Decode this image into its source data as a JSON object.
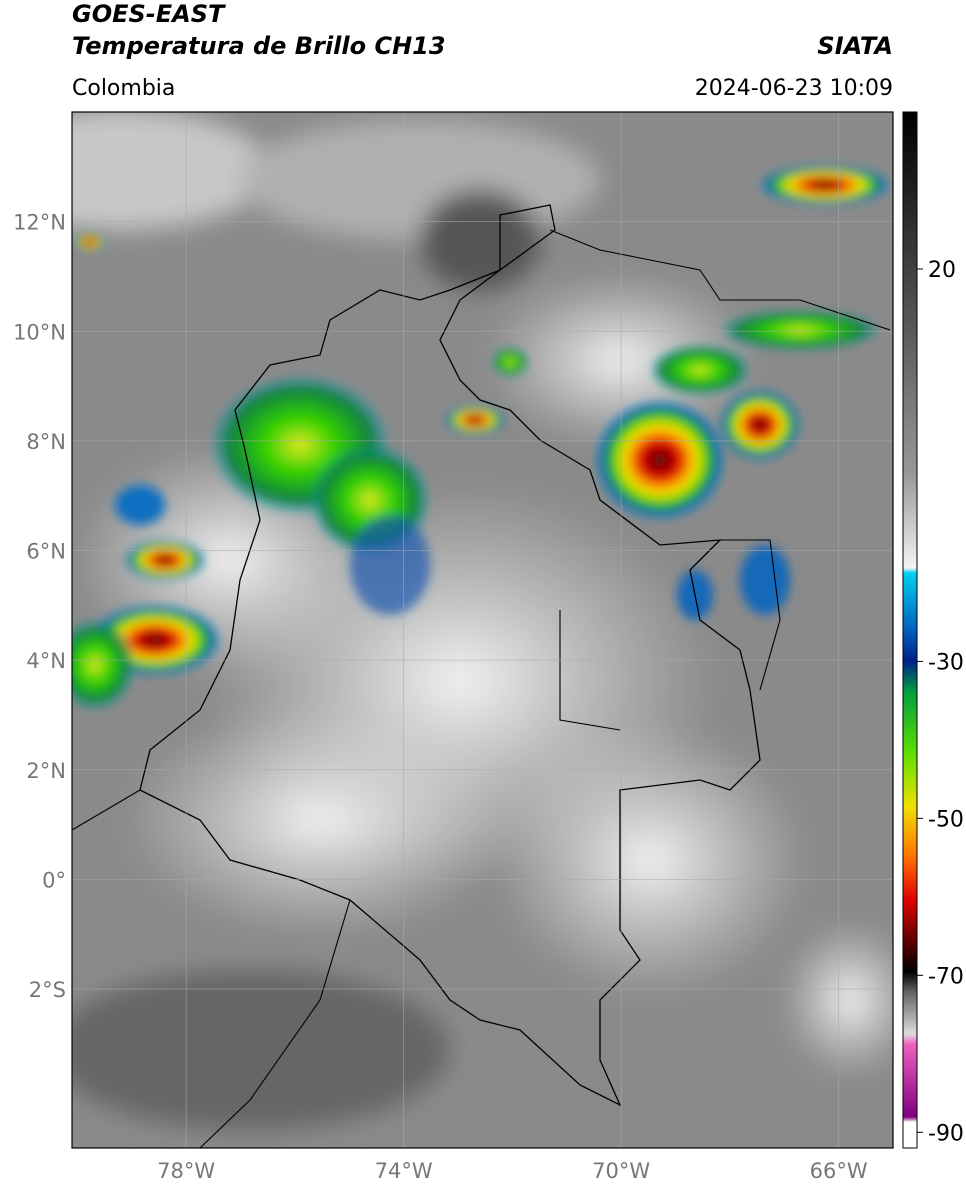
{
  "header": {
    "title": "GOES-EAST",
    "subtitle": "Temperatura de Brillo CH13",
    "source": "SIATA",
    "region": "Colombia",
    "datetime": "2024-06-23 10:09"
  },
  "map": {
    "xlim": [
      -80.1,
      -65
    ],
    "ylim": [
      -4.9,
      14
    ],
    "lat_ticks": [
      {
        "value": 12,
        "label": "12°N"
      },
      {
        "value": 10,
        "label": "10°N"
      },
      {
        "value": 8,
        "label": "8°N"
      },
      {
        "value": 6,
        "label": "6°N"
      },
      {
        "value": 4,
        "label": "4°N"
      },
      {
        "value": 2,
        "label": "2°N"
      },
      {
        "value": 0,
        "label": "0°"
      },
      {
        "value": -2,
        "label": "2°S"
      }
    ],
    "lon_ticks": [
      {
        "value": -78,
        "label": "78°W"
      },
      {
        "value": -74,
        "label": "74°W"
      },
      {
        "value": -70,
        "label": "70°W"
      },
      {
        "value": -66,
        "label": "66°W"
      }
    ]
  },
  "colorbar": {
    "range": [
      -92,
      40
    ],
    "ticks": [
      20,
      -30,
      -50,
      -70,
      -90
    ]
  }
}
